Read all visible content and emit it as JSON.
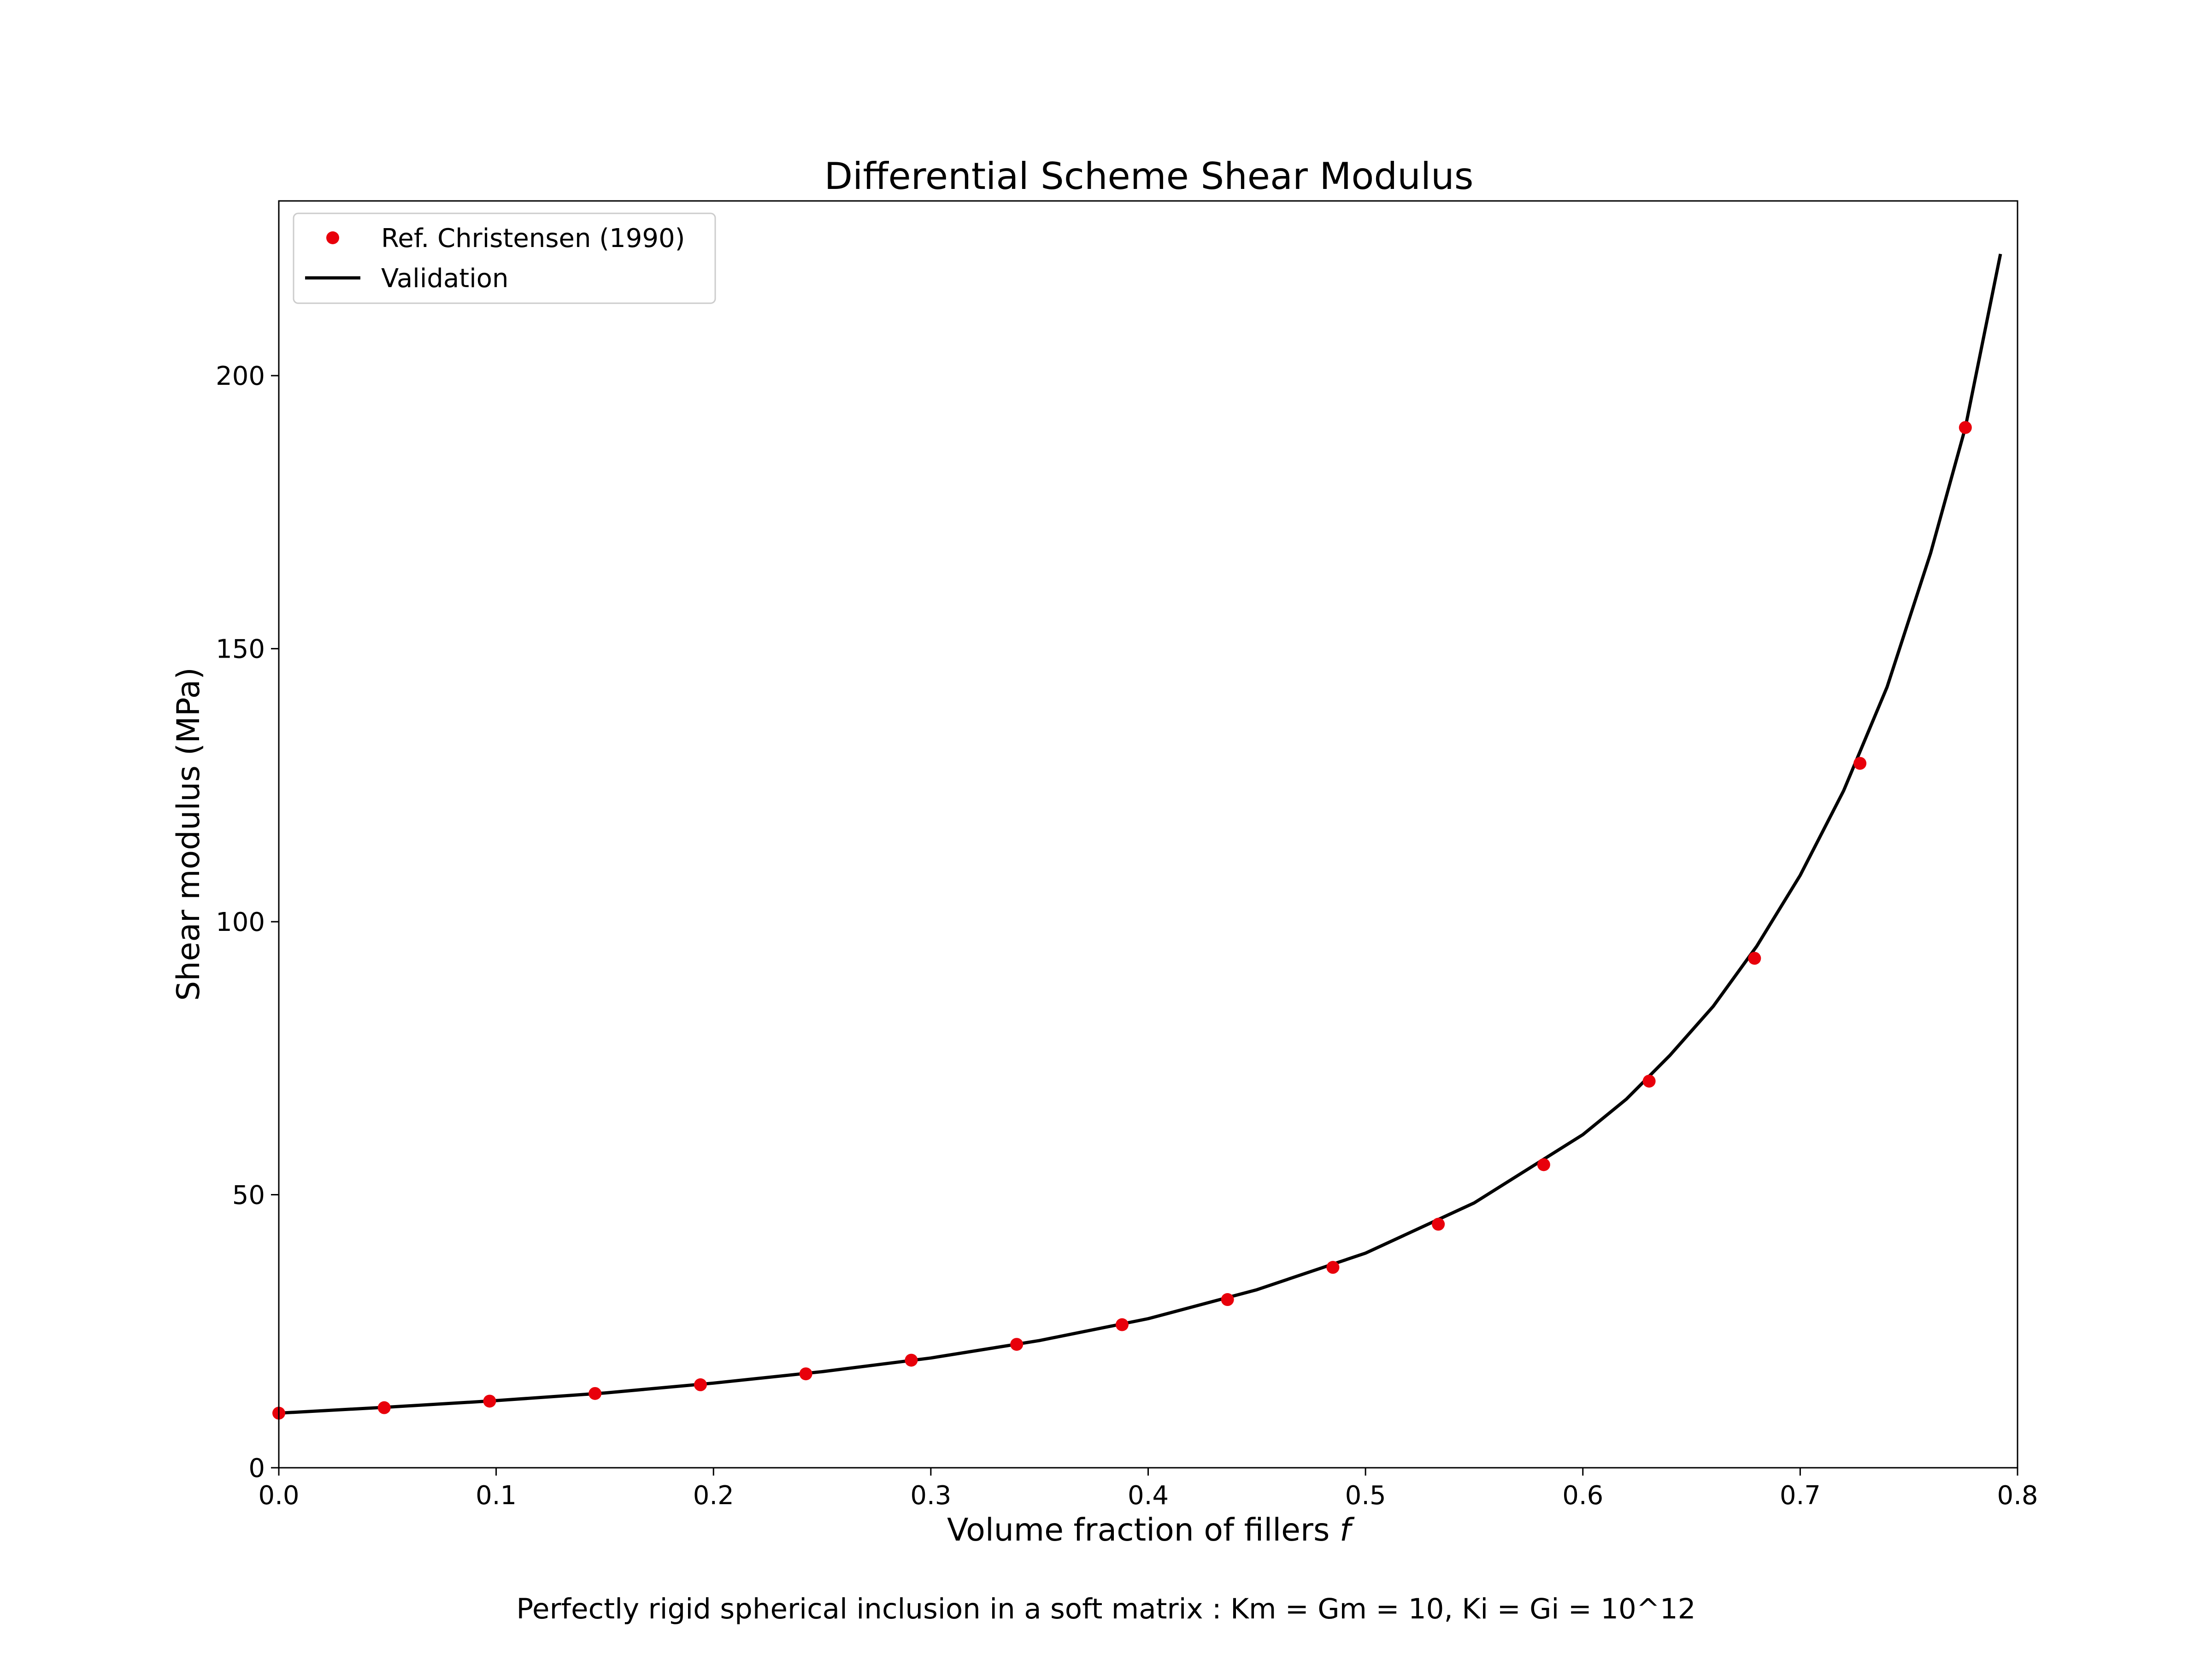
{
  "chart_data": {
    "type": "line",
    "title": "Differential Scheme Shear Modulus",
    "xlabel": "Volume fraction of fillers",
    "xlabel_symbol": "f",
    "ylabel": "Shear modulus (MPa)",
    "caption": "Perfectly rigid spherical inclusion in a soft matrix : Km = Gm = 10, Ki = Gi = 10^12",
    "xlim": [
      0.0,
      0.8
    ],
    "ylim": [
      0,
      232
    ],
    "xticks": [
      0.0,
      0.1,
      0.2,
      0.3,
      0.4,
      0.5,
      0.6,
      0.7,
      0.8
    ],
    "xtick_labels": [
      "0.0",
      "0.1",
      "0.2",
      "0.3",
      "0.4",
      "0.5",
      "0.6",
      "0.7",
      "0.8"
    ],
    "yticks": [
      0,
      50,
      100,
      150,
      200
    ],
    "ytick_labels": [
      "0",
      "50",
      "100",
      "150",
      "200"
    ],
    "grid": false,
    "legend_position": "top-left",
    "series": [
      {
        "name": "Ref. Christensen (1990)",
        "kind": "scatter",
        "color": "#e8000b",
        "x": [
          0.0,
          0.0485,
          0.097,
          0.1455,
          0.194,
          0.2425,
          0.291,
          0.3395,
          0.388,
          0.4365,
          0.485,
          0.5335,
          0.582,
          0.6305,
          0.679,
          0.7275,
          0.776
        ],
        "y": [
          10.0,
          11.0,
          12.2,
          13.6,
          15.2,
          17.2,
          19.7,
          22.6,
          26.2,
          30.8,
          36.7,
          44.6,
          55.5,
          70.8,
          93.3,
          129.0,
          190.5
        ]
      },
      {
        "name": "Validation",
        "kind": "line",
        "color": "#000000",
        "x": [
          0.0,
          0.05,
          0.1,
          0.15,
          0.2,
          0.25,
          0.3,
          0.35,
          0.4,
          0.45,
          0.5,
          0.55,
          0.6,
          0.62,
          0.64,
          0.66,
          0.68,
          0.7,
          0.72,
          0.74,
          0.76,
          0.776,
          0.792
        ],
        "y": [
          10.0,
          11.1,
          12.3,
          13.7,
          15.5,
          17.6,
          20.1,
          23.3,
          27.3,
          32.6,
          39.3,
          48.5,
          61.0,
          67.5,
          75.5,
          84.5,
          95.5,
          108.5,
          124.0,
          143.0,
          167.5,
          190.5,
          222.0
        ]
      }
    ]
  }
}
